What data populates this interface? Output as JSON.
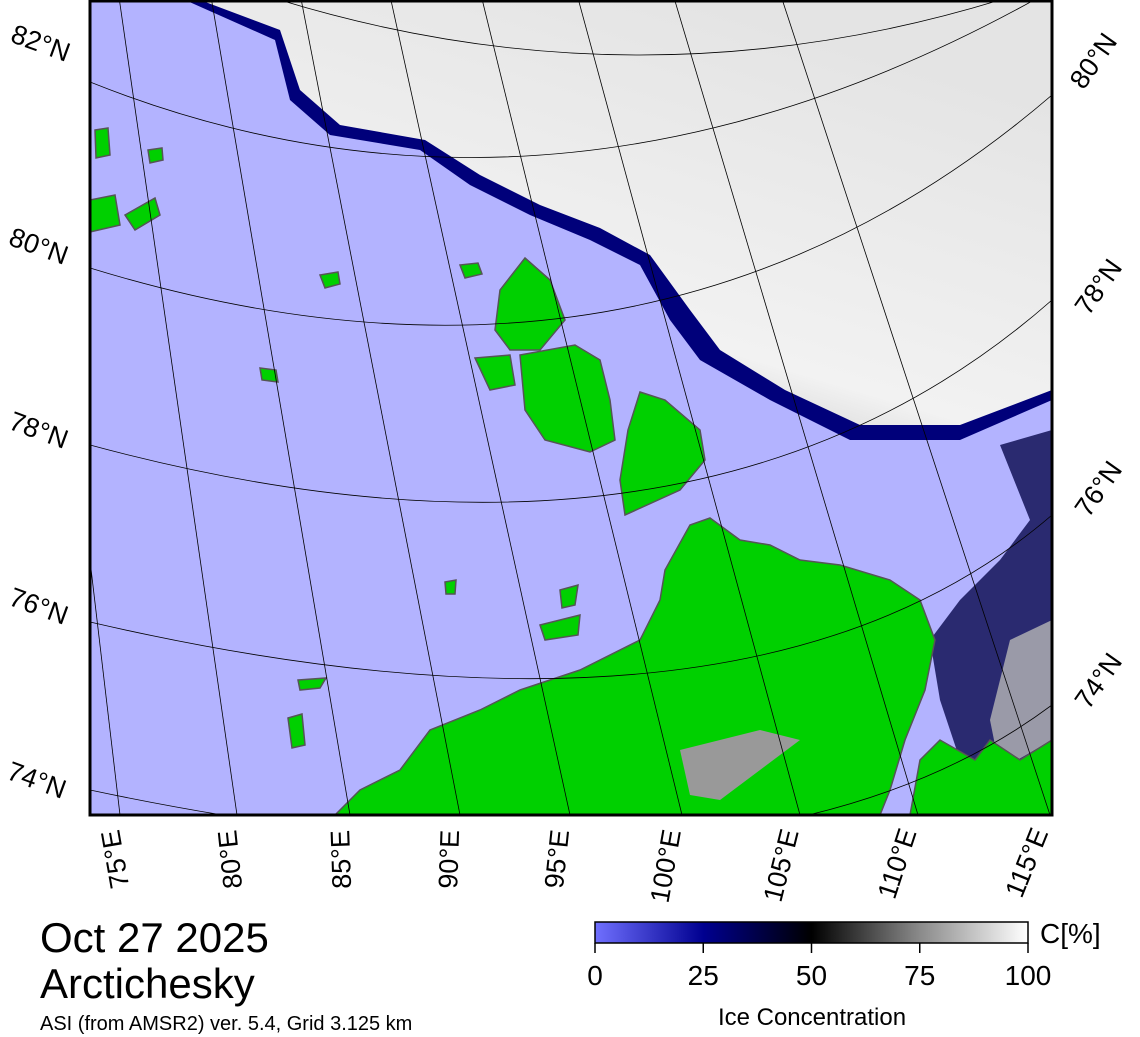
{
  "map": {
    "lat_labels_left": [
      "82°N",
      "80°N",
      "78°N",
      "76°N",
      "74°N"
    ],
    "lat_labels_right": [
      "80°N",
      "78°N",
      "76°N",
      "74°N"
    ],
    "lon_labels": [
      "75°E",
      "80°E",
      "85°E",
      "90°E",
      "95°E",
      "100°E",
      "105°E",
      "110°E",
      "115°E"
    ]
  },
  "header": {
    "date": "Oct 27 2025",
    "region": "Arctichesky",
    "source": "ASI (from AMSR2) ver. 5.4,  Grid 3.125 km"
  },
  "colorbar": {
    "label": "Ice Concentration",
    "unit": "C[%]",
    "range": [
      0,
      100
    ],
    "ticks": [
      0,
      25,
      50,
      75,
      100
    ]
  }
}
